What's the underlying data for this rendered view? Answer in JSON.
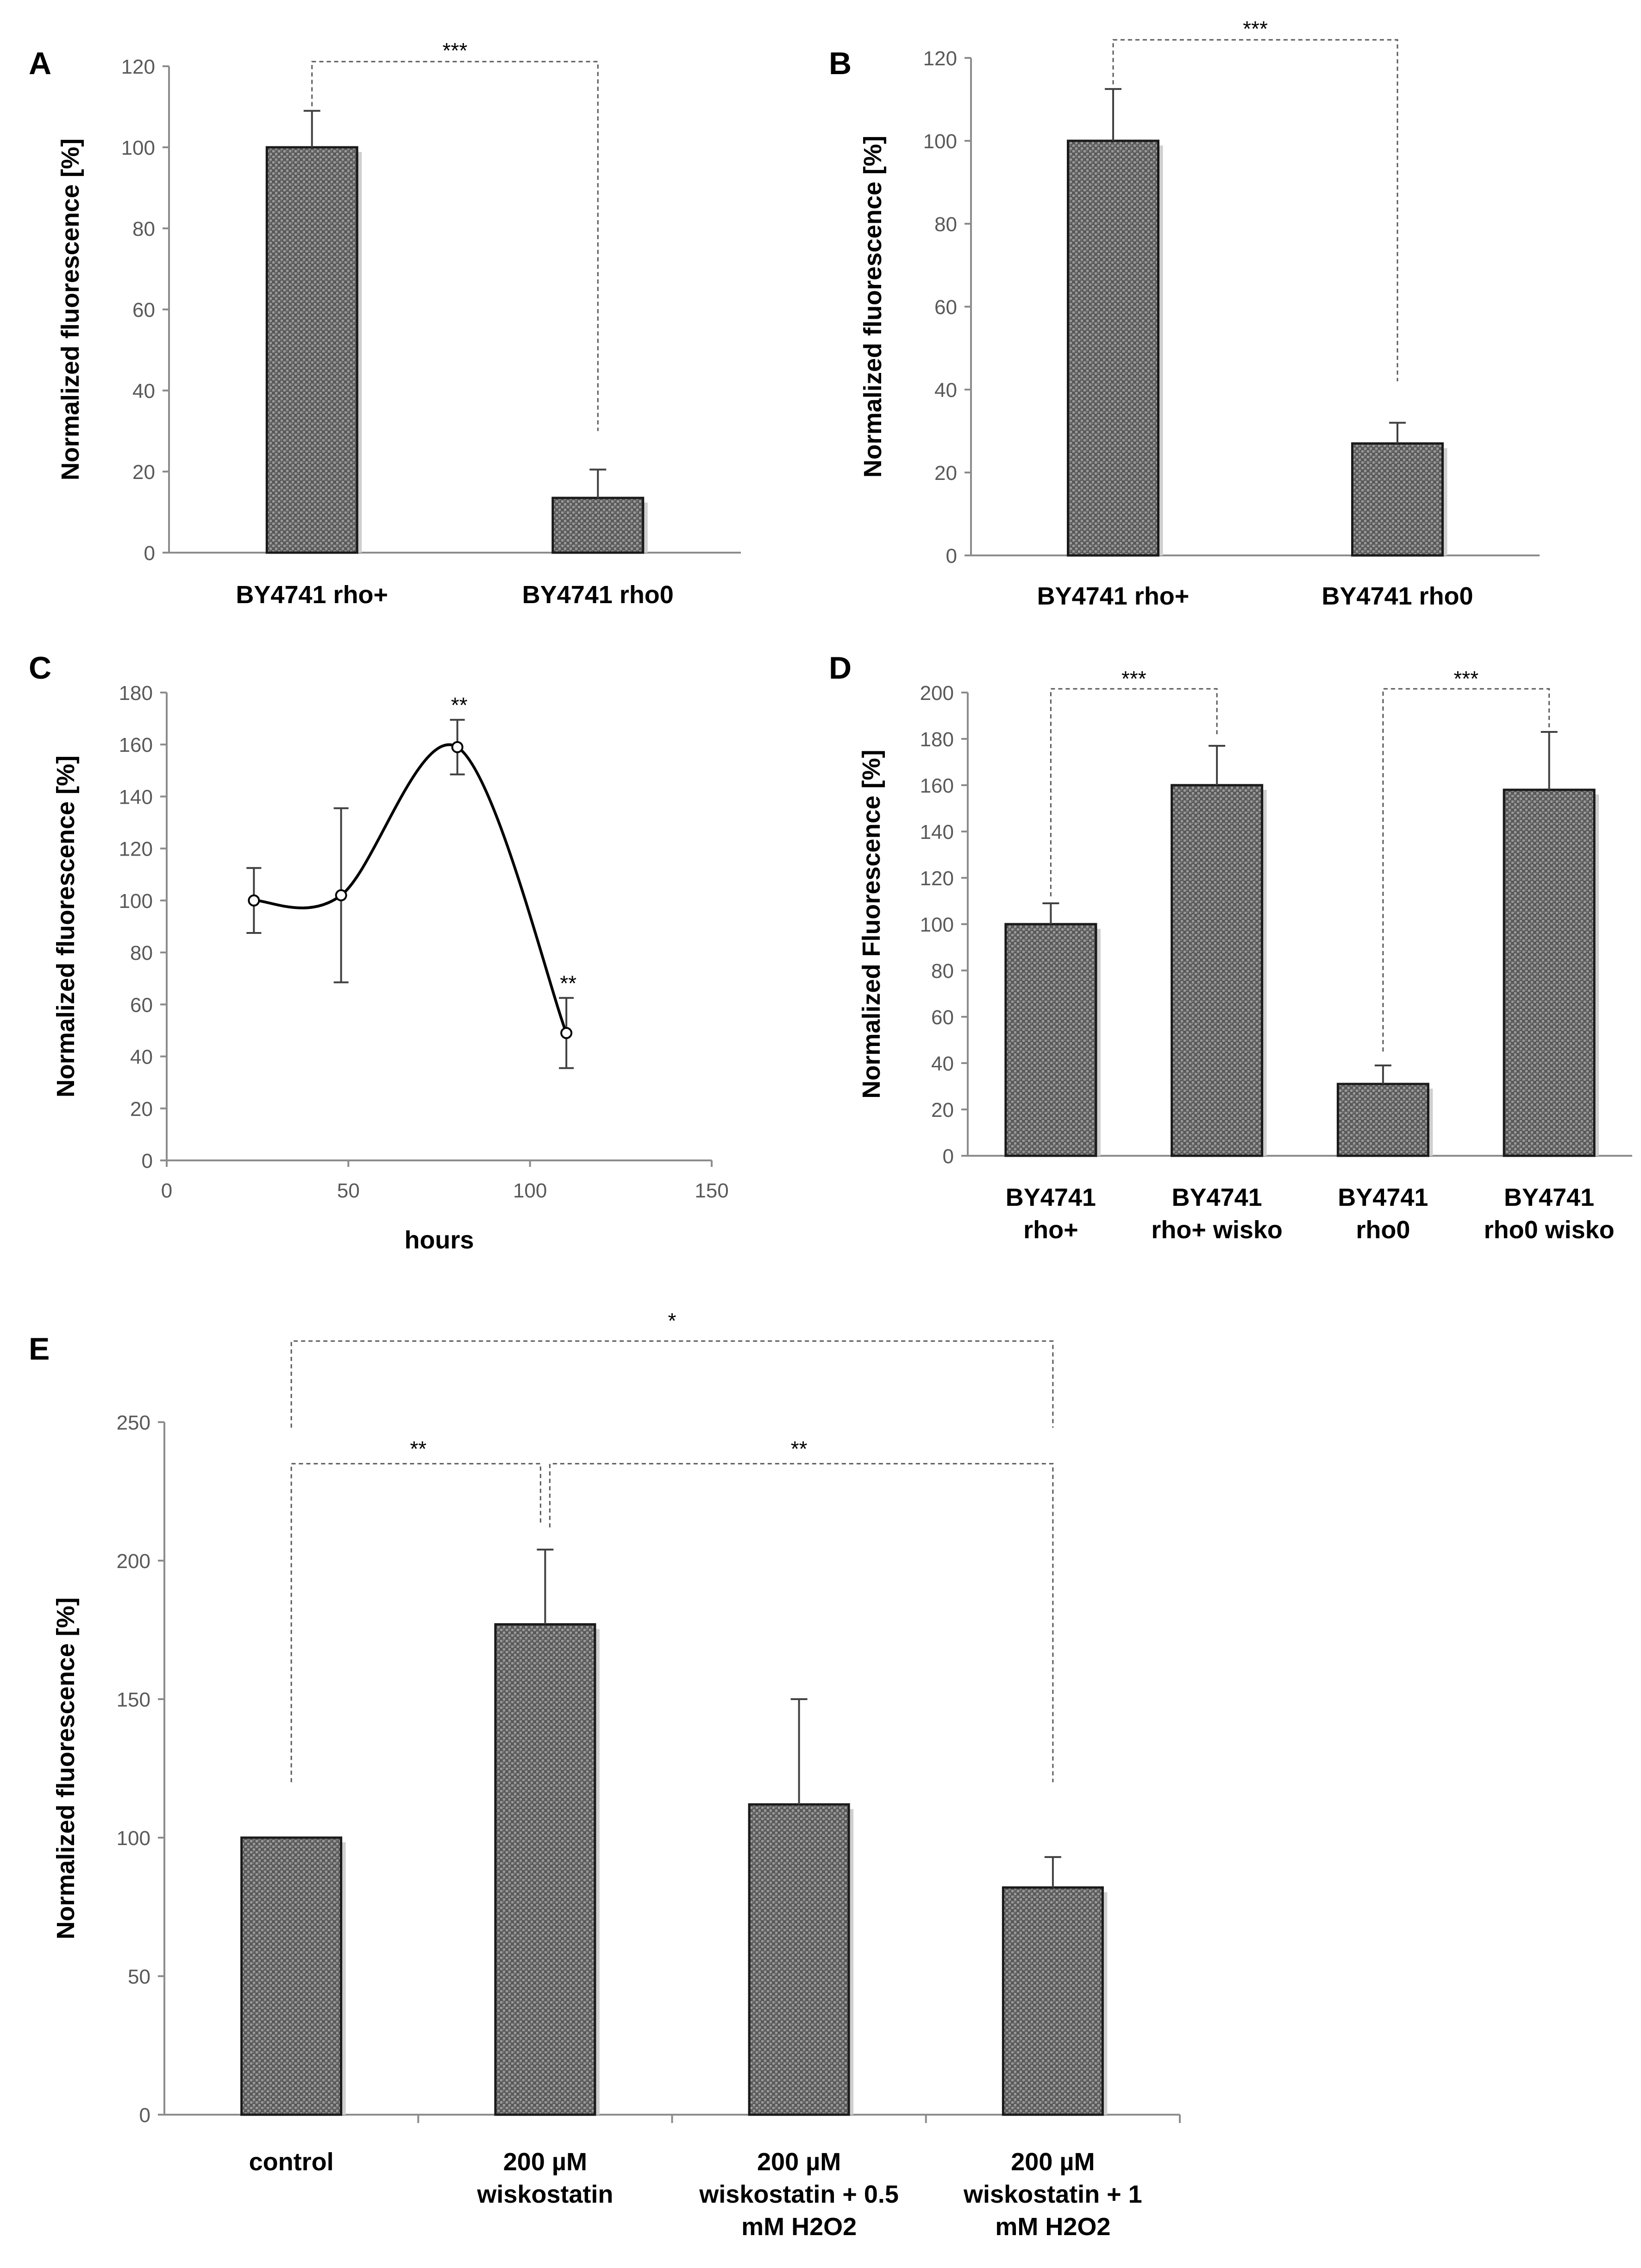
{
  "chart_data": [
    {
      "id": "A",
      "type": "bar",
      "panel_label": "A",
      "categories": [
        "BY4741 rho+",
        "BY4741 rho0"
      ],
      "values": [
        100,
        13.5
      ],
      "errors": [
        9,
        7
      ],
      "ylabel": "Normalized fluorescence [%]",
      "xlabel": "",
      "ylim": [
        0,
        120
      ],
      "yticks": [
        "0",
        "20",
        "40",
        "60",
        "80",
        "100",
        "120"
      ],
      "significance": [
        {
          "from": 0,
          "to": 1,
          "label": "***"
        }
      ]
    },
    {
      "id": "B",
      "type": "bar",
      "panel_label": "B",
      "categories": [
        "BY4741 rho+",
        "BY4741 rho0"
      ],
      "values": [
        100,
        27
      ],
      "errors": [
        12.5,
        5
      ],
      "ylabel": "Normalized fluorescence [%]",
      "xlabel": "",
      "ylim": [
        0,
        120
      ],
      "yticks": [
        "0",
        "20",
        "40",
        "60",
        "80",
        "100",
        "120"
      ],
      "significance": [
        {
          "from": 0,
          "to": 1,
          "label": "***"
        }
      ]
    },
    {
      "id": "C",
      "type": "line",
      "panel_label": "C",
      "x": [
        24,
        48,
        80,
        110
      ],
      "values": [
        100,
        102,
        159,
        49
      ],
      "errors": [
        12.5,
        33.5,
        10.5,
        13.5
      ],
      "point_labels": [
        "",
        "",
        "**",
        "**"
      ],
      "ylabel": "Normalized fluorescence [%]",
      "xlabel": "hours",
      "xlim": [
        0,
        150
      ],
      "ylim": [
        0,
        180
      ],
      "xticks": [
        "0",
        "50",
        "100",
        "150"
      ],
      "yticks": [
        "0",
        "20",
        "40",
        "60",
        "80",
        "100",
        "120",
        "140",
        "160",
        "180"
      ]
    },
    {
      "id": "D",
      "type": "bar",
      "panel_label": "D",
      "categories": [
        [
          "BY4741",
          "rho+"
        ],
        [
          "BY4741",
          "rho+ wisko"
        ],
        [
          "BY4741",
          "rho0"
        ],
        [
          "BY4741",
          "rho0 wisko"
        ]
      ],
      "values": [
        100,
        160,
        31,
        158
      ],
      "errors": [
        9,
        17,
        8,
        25
      ],
      "ylabel": "Normalized Fluorescence [%]",
      "xlabel": "",
      "ylim": [
        0,
        200
      ],
      "yticks": [
        "0",
        "20",
        "40",
        "60",
        "80",
        "100",
        "120",
        "140",
        "160",
        "180",
        "200"
      ],
      "significance": [
        {
          "from": 0,
          "to": 1,
          "label": "***"
        },
        {
          "from": 2,
          "to": 3,
          "label": "***"
        }
      ]
    },
    {
      "id": "E",
      "type": "bar",
      "panel_label": "E",
      "categories": [
        [
          "control"
        ],
        [
          "200 µM",
          "wiskostatin"
        ],
        [
          "200 µM",
          "wiskostatin + 0.5",
          "mM H2O2"
        ],
        [
          "200 µM",
          "wiskostatin + 1",
          "mM H2O2"
        ]
      ],
      "values": [
        100,
        177,
        112,
        82
      ],
      "errors": [
        0,
        27,
        38,
        11
      ],
      "ylabel": "Normalized fluorescence [%]",
      "xlabel": "",
      "ylim": [
        0,
        250
      ],
      "yticks": [
        "0",
        "50",
        "100",
        "150",
        "200",
        "250"
      ],
      "significance": [
        {
          "from": 0,
          "to": 3,
          "label": "*"
        },
        {
          "from": 0,
          "to": 1,
          "label": "**"
        },
        {
          "from": 1,
          "to": 3,
          "label": "**"
        }
      ]
    }
  ]
}
